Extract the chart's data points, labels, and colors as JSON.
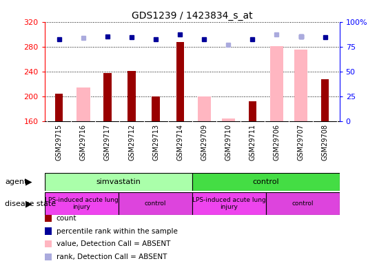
{
  "title": "GDS1239 / 1423834_s_at",
  "samples": [
    "GSM29715",
    "GSM29716",
    "GSM29717",
    "GSM29712",
    "GSM29713",
    "GSM29714",
    "GSM29709",
    "GSM29710",
    "GSM29711",
    "GSM29706",
    "GSM29707",
    "GSM29708"
  ],
  "count_values": [
    205,
    null,
    238,
    241,
    200,
    288,
    null,
    null,
    193,
    null,
    null,
    228
  ],
  "absent_value_bars": [
    null,
    215,
    null,
    null,
    null,
    null,
    200,
    165,
    null,
    282,
    276,
    null
  ],
  "percentile_rank": [
    83,
    null,
    86,
    85,
    83,
    88,
    83,
    null,
    83,
    null,
    86,
    85
  ],
  "absent_rank": [
    null,
    84,
    null,
    null,
    null,
    null,
    null,
    77,
    null,
    88,
    86,
    null
  ],
  "ylim_left": [
    160,
    320
  ],
  "ylim_right": [
    0,
    100
  ],
  "yticks_left": [
    160,
    200,
    240,
    280,
    320
  ],
  "yticks_right": [
    0,
    25,
    50,
    75,
    100
  ],
  "agent_groups": [
    {
      "label": "simvastatin",
      "start": 0,
      "end": 6,
      "color": "#aaffaa"
    },
    {
      "label": "control",
      "start": 6,
      "end": 12,
      "color": "#44dd44"
    }
  ],
  "disease_groups": [
    {
      "label": "LPS-induced acute lung\ninjury",
      "start": 0,
      "end": 3,
      "color": "#ee44ee"
    },
    {
      "label": "control",
      "start": 3,
      "end": 6,
      "color": "#dd44dd"
    },
    {
      "label": "LPS-induced acute lung\ninjury",
      "start": 6,
      "end": 9,
      "color": "#ee44ee"
    },
    {
      "label": "control",
      "start": 9,
      "end": 12,
      "color": "#dd44dd"
    }
  ],
  "count_color": "#990000",
  "absent_value_color": "#FFB6C1",
  "percentile_color": "#000099",
  "absent_rank_color": "#aaaadd",
  "legend_items": [
    {
      "label": "count",
      "color": "#990000"
    },
    {
      "label": "percentile rank within the sample",
      "color": "#000099"
    },
    {
      "label": "value, Detection Call = ABSENT",
      "color": "#FFB6C1"
    },
    {
      "label": "rank, Detection Call = ABSENT",
      "color": "#aaaadd"
    }
  ]
}
